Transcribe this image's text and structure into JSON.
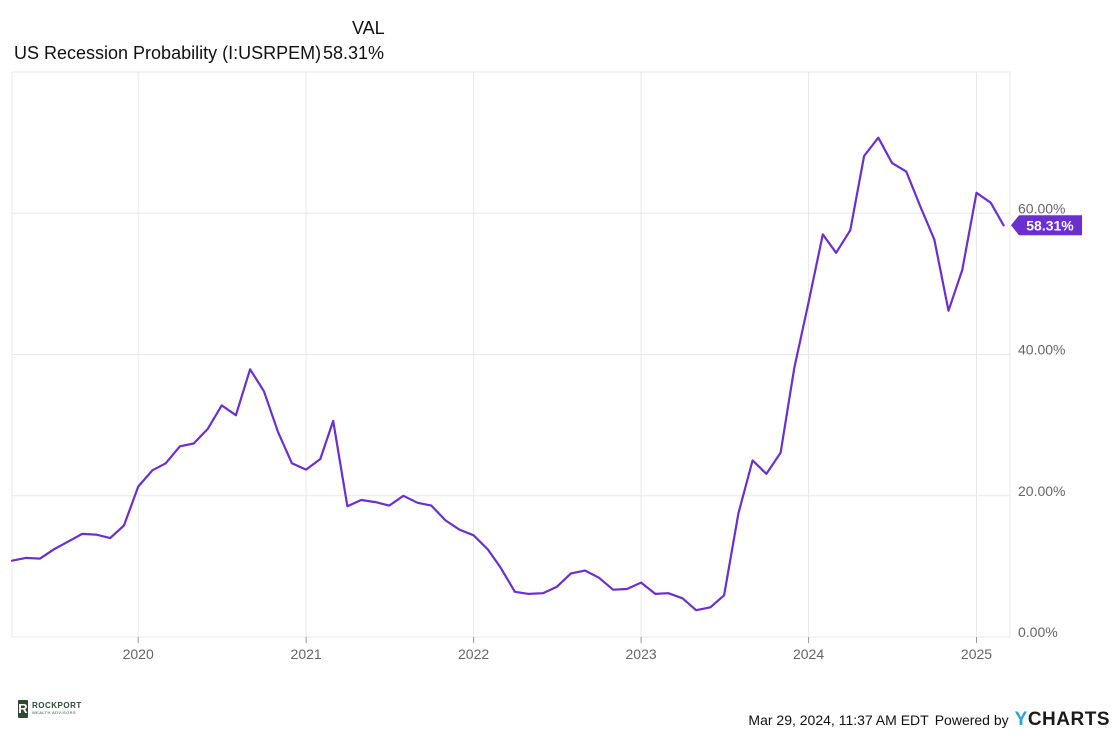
{
  "legend": {
    "column_header": "VAL",
    "series_label": "US Recession Probability (I:USRPEM)",
    "series_value": "58.31%"
  },
  "colors": {
    "series": "#6b2fd0",
    "grid": "#e8e8e8",
    "axis_text": "#666666"
  },
  "footer": {
    "timestamp": "Mar 29, 2024, 11:37 AM EDT",
    "powered_by": "Powered by",
    "ycharts_y": "Y",
    "ycharts_rest": "CHARTS",
    "brand_initial": "R",
    "brand_name": "ROCKPORT",
    "brand_sub": "WEALTH ADVISORS"
  },
  "chart_data": {
    "type": "line",
    "title": "",
    "xlabel": "",
    "ylabel": "",
    "x_tick_labels": [
      "2020",
      "2021",
      "2022",
      "2023",
      "2024",
      "2025"
    ],
    "y_tick_labels": [
      "0.00%",
      "20.00%",
      "40.00%",
      "60.00%"
    ],
    "xlim": [
      "2019-04-01",
      "2025-03-15"
    ],
    "ylim": [
      0,
      80
    ],
    "grid": true,
    "last_value_label": "58.31%",
    "series": [
      {
        "name": "US Recession Probability (I:USRPEM)",
        "unit": "%",
        "x": [
          "2019-04-01",
          "2019-05-01",
          "2019-06-01",
          "2019-07-01",
          "2019-08-01",
          "2019-09-01",
          "2019-10-01",
          "2019-11-01",
          "2019-12-01",
          "2020-01-01",
          "2020-02-01",
          "2020-03-01",
          "2020-04-01",
          "2020-05-01",
          "2020-06-01",
          "2020-07-01",
          "2020-08-01",
          "2020-09-01",
          "2020-10-01",
          "2020-11-01",
          "2020-12-01",
          "2021-01-01",
          "2021-02-01",
          "2021-03-01",
          "2021-04-01",
          "2021-05-01",
          "2021-06-01",
          "2021-07-01",
          "2021-08-01",
          "2021-09-01",
          "2021-10-01",
          "2021-11-01",
          "2021-12-01",
          "2022-01-01",
          "2022-02-01",
          "2022-03-01",
          "2022-04-01",
          "2022-05-01",
          "2022-06-01",
          "2022-07-01",
          "2022-08-01",
          "2022-09-01",
          "2022-10-01",
          "2022-11-01",
          "2022-12-01",
          "2023-01-01",
          "2023-02-01",
          "2023-03-01",
          "2023-04-01",
          "2023-05-01",
          "2023-06-01",
          "2023-07-01",
          "2023-08-01",
          "2023-09-01",
          "2023-10-01",
          "2023-11-01",
          "2023-12-01",
          "2024-01-01",
          "2024-02-01",
          "2024-03-01",
          "2024-04-01",
          "2024-05-01",
          "2024-06-01",
          "2024-07-01",
          "2024-08-01",
          "2024-09-01",
          "2024-10-01",
          "2024-11-01",
          "2024-12-01",
          "2025-01-01",
          "2025-02-01",
          "2025-03-01"
        ],
        "values": [
          10.8,
          11.2,
          11.1,
          12.4,
          13.5,
          14.6,
          14.5,
          14.0,
          15.8,
          21.3,
          23.6,
          24.6,
          27.0,
          27.4,
          29.5,
          32.8,
          31.4,
          37.9,
          34.8,
          29.0,
          24.6,
          23.7,
          25.2,
          30.6,
          18.5,
          19.4,
          19.1,
          18.6,
          20.0,
          19.0,
          18.6,
          16.5,
          15.2,
          14.4,
          12.4,
          9.8,
          6.4,
          6.1,
          6.2,
          7.1,
          9.0,
          9.4,
          8.4,
          6.7,
          6.8,
          7.7,
          6.1,
          6.2,
          5.5,
          3.8,
          4.2,
          5.9,
          17.5,
          25.0,
          23.1,
          26.1,
          38.1,
          47.4,
          57.0,
          54.4,
          57.6,
          68.1,
          70.7,
          67.1,
          65.9,
          60.9,
          56.3,
          46.2,
          52.0,
          62.9,
          61.5,
          58.3
        ]
      }
    ]
  }
}
